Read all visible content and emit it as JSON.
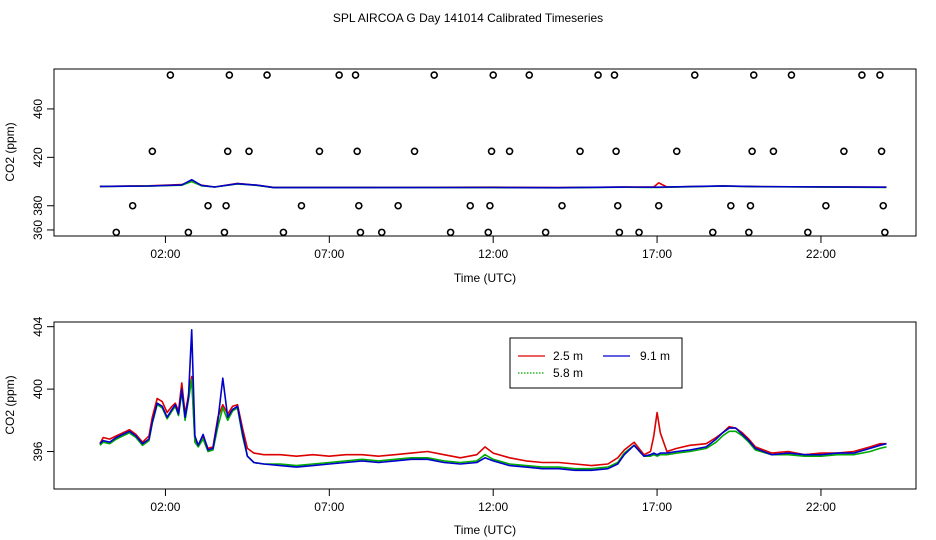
{
  "title": "SPL AIRCOA G  Day 141014  Calibrated Timeseries",
  "chart_data": [
    {
      "type": "scatter",
      "id": "top",
      "xlabel": "Time (UTC)",
      "ylabel": "CO2 (ppm)",
      "x_unit": "hours",
      "xlim": [
        -1.4,
        24.9
      ],
      "ylim": [
        355,
        493
      ],
      "xtick_values": [
        2,
        7,
        12,
        17,
        22
      ],
      "xtick_labels": [
        "02:00",
        "07:00",
        "12:00",
        "17:00",
        "22:00"
      ],
      "ytick_values": [
        360,
        380,
        420,
        460
      ],
      "ytick_labels": [
        "360",
        "380",
        "420",
        "460"
      ],
      "markers_note": "open circles at flagged points",
      "markers": [
        [
          0.5,
          358
        ],
        [
          1.0,
          380
        ],
        [
          1.6,
          425
        ],
        [
          2.15,
          488
        ],
        [
          2.7,
          358
        ],
        [
          3.3,
          380
        ],
        [
          3.8,
          358
        ],
        [
          3.85,
          380
        ],
        [
          3.9,
          425
        ],
        [
          3.95,
          488
        ],
        [
          4.55,
          425
        ],
        [
          5.1,
          488
        ],
        [
          5.6,
          358
        ],
        [
          6.15,
          380
        ],
        [
          6.7,
          425
        ],
        [
          7.3,
          488
        ],
        [
          7.8,
          488
        ],
        [
          7.85,
          425
        ],
        [
          7.9,
          380
        ],
        [
          7.95,
          358
        ],
        [
          8.6,
          358
        ],
        [
          9.1,
          380
        ],
        [
          9.6,
          425
        ],
        [
          10.2,
          488
        ],
        [
          10.7,
          358
        ],
        [
          11.3,
          380
        ],
        [
          11.85,
          358
        ],
        [
          11.9,
          380
        ],
        [
          11.95,
          425
        ],
        [
          12.0,
          488
        ],
        [
          12.5,
          425
        ],
        [
          13.1,
          488
        ],
        [
          13.6,
          358
        ],
        [
          14.1,
          380
        ],
        [
          14.65,
          425
        ],
        [
          15.2,
          488
        ],
        [
          15.7,
          488
        ],
        [
          15.75,
          425
        ],
        [
          15.8,
          380
        ],
        [
          15.85,
          358
        ],
        [
          16.45,
          358
        ],
        [
          17.05,
          380
        ],
        [
          17.6,
          425
        ],
        [
          18.15,
          488
        ],
        [
          18.7,
          358
        ],
        [
          19.25,
          380
        ],
        [
          19.8,
          358
        ],
        [
          19.85,
          380
        ],
        [
          19.9,
          425
        ],
        [
          19.95,
          488
        ],
        [
          20.55,
          425
        ],
        [
          21.1,
          488
        ],
        [
          21.6,
          358
        ],
        [
          22.15,
          380
        ],
        [
          22.7,
          425
        ],
        [
          23.25,
          488
        ],
        [
          23.8,
          488
        ],
        [
          23.85,
          425
        ],
        [
          23.9,
          380
        ],
        [
          23.95,
          358
        ]
      ],
      "series": [
        {
          "name": "2.5 m",
          "color": "#dd0000",
          "x": [
            0,
            1.5,
            2.5,
            2.8,
            3.1,
            3.5,
            4.2,
            4.8,
            5.3,
            8,
            12,
            14,
            16,
            16.9,
            17.05,
            17.3,
            19,
            20,
            24
          ],
          "y": [
            396,
            396.5,
            397.5,
            400,
            397,
            395.5,
            398.5,
            397,
            395.2,
            395.2,
            395.3,
            395,
            395.5,
            395.5,
            399,
            395.5,
            396.3,
            395.8,
            395.3
          ]
        },
        {
          "name": "5.8 m",
          "color": "#00aa00",
          "x": [
            0,
            1.5,
            2.5,
            2.8,
            3.1,
            3.5,
            4.2,
            4.8,
            5.3,
            8,
            12,
            14,
            16,
            17,
            19,
            20,
            24
          ],
          "y": [
            396,
            396.2,
            397,
            400,
            396.5,
            395.5,
            398,
            396.8,
            395,
            395,
            395,
            394.8,
            395.3,
            395.2,
            396.2,
            395.7,
            395.2
          ]
        },
        {
          "name": "9.1 m",
          "color": "#0000cc",
          "x": [
            0,
            1.5,
            2.5,
            2.8,
            3.1,
            3.5,
            4.2,
            4.8,
            5.3,
            8,
            12,
            14,
            16,
            17,
            19,
            20,
            24
          ],
          "y": [
            396,
            396.3,
            397.2,
            401.5,
            396.8,
            395.5,
            398.2,
            397,
            395,
            395,
            395.1,
            394.9,
            395.4,
            395.3,
            396.4,
            395.8,
            395.3
          ]
        }
      ]
    },
    {
      "type": "line",
      "id": "bottom",
      "xlabel": "Time (UTC)",
      "ylabel": "CO2 (ppm)",
      "x_unit": "hours",
      "xlim": [
        -1.4,
        24.9
      ],
      "ylim": [
        393.6,
        404.3
      ],
      "xtick_values": [
        2,
        7,
        12,
        17,
        22
      ],
      "xtick_labels": [
        "02:00",
        "07:00",
        "12:00",
        "17:00",
        "22:00"
      ],
      "ytick_values": [
        396,
        400,
        404
      ],
      "ytick_labels": [
        "396",
        "400",
        "404"
      ],
      "legend_position": "top-right-of-center",
      "legend": [
        {
          "label": "2.5 m",
          "color": "#dd0000",
          "style": "solid"
        },
        {
          "label": "5.8 m",
          "color": "#00aa00",
          "style": "dotted"
        },
        {
          "label": "9.1 m",
          "color": "#0000cc",
          "style": "solid"
        }
      ],
      "series": [
        {
          "name": "2.5 m",
          "color": "#dd0000",
          "x": [
            0,
            0.1,
            0.3,
            0.5,
            0.7,
            0.9,
            1.1,
            1.3,
            1.5,
            1.6,
            1.75,
            1.9,
            2.05,
            2.2,
            2.3,
            2.4,
            2.5,
            2.6,
            2.7,
            2.8,
            2.9,
            3.0,
            3.15,
            3.3,
            3.45,
            3.6,
            3.75,
            3.9,
            4.05,
            4.2,
            4.35,
            4.5,
            4.7,
            5.0,
            5.5,
            6.0,
            6.5,
            7.0,
            7.5,
            8.0,
            8.5,
            9.0,
            9.5,
            10.0,
            10.5,
            11.0,
            11.5,
            11.75,
            12.0,
            12.5,
            13.0,
            13.5,
            14.0,
            14.5,
            15.0,
            15.5,
            15.8,
            16.0,
            16.3,
            16.6,
            16.8,
            16.9,
            17.0,
            17.1,
            17.3,
            17.6,
            18.0,
            18.5,
            18.8,
            19.0,
            19.2,
            19.4,
            19.6,
            19.8,
            20.0,
            20.5,
            21.0,
            21.5,
            22.0,
            22.5,
            23.0,
            23.5,
            23.8,
            24.0
          ],
          "y": [
            396.5,
            396.9,
            396.8,
            397.0,
            397.2,
            397.4,
            397.1,
            396.6,
            397.0,
            398.2,
            399.4,
            399.2,
            398.5,
            398.9,
            399.1,
            398.6,
            400.4,
            398.4,
            399.6,
            400.8,
            396.8,
            396.4,
            397.0,
            396.2,
            396.3,
            398.2,
            399.0,
            398.4,
            398.9,
            399.0,
            397.5,
            396.2,
            395.9,
            395.8,
            395.8,
            395.7,
            395.8,
            395.7,
            395.8,
            395.8,
            395.7,
            395.8,
            395.9,
            396.0,
            395.8,
            395.6,
            395.8,
            396.3,
            395.9,
            395.6,
            395.4,
            395.3,
            395.3,
            395.2,
            395.1,
            395.2,
            395.6,
            396.1,
            396.6,
            395.8,
            396.0,
            397.0,
            398.5,
            397.2,
            396.0,
            396.2,
            396.4,
            396.5,
            396.9,
            397.2,
            397.6,
            397.5,
            397.2,
            396.8,
            396.3,
            395.9,
            396.0,
            395.8,
            395.9,
            395.9,
            396.0,
            396.3,
            396.5,
            396.5
          ]
        },
        {
          "name": "5.8 m",
          "color": "#00aa00",
          "x": [
            0,
            0.1,
            0.3,
            0.5,
            0.7,
            0.9,
            1.1,
            1.3,
            1.5,
            1.6,
            1.75,
            1.9,
            2.05,
            2.2,
            2.3,
            2.4,
            2.5,
            2.6,
            2.7,
            2.8,
            2.9,
            3.0,
            3.15,
            3.3,
            3.45,
            3.6,
            3.75,
            3.9,
            4.05,
            4.2,
            4.35,
            4.5,
            4.7,
            5.0,
            5.5,
            6.0,
            6.5,
            7.0,
            7.5,
            8.0,
            8.5,
            9.0,
            9.5,
            10.0,
            10.5,
            11.0,
            11.5,
            11.75,
            12.0,
            12.5,
            13.0,
            13.5,
            14.0,
            14.5,
            15.0,
            15.5,
            15.8,
            16.0,
            16.3,
            16.6,
            16.8,
            16.9,
            17.0,
            17.1,
            17.3,
            17.6,
            18.0,
            18.5,
            18.8,
            19.0,
            19.2,
            19.4,
            19.6,
            19.8,
            20.0,
            20.5,
            21.0,
            21.5,
            22.0,
            22.5,
            23.0,
            23.5,
            23.8,
            24.0
          ],
          "y": [
            396.4,
            396.6,
            396.5,
            396.8,
            397.0,
            397.2,
            396.9,
            396.4,
            396.7,
            397.8,
            399.0,
            398.8,
            398.1,
            398.6,
            398.9,
            398.3,
            399.8,
            398.0,
            399.3,
            400.6,
            396.6,
            396.3,
            396.8,
            396.0,
            396.1,
            397.6,
            398.8,
            398.0,
            398.6,
            398.8,
            397.0,
            395.7,
            395.3,
            395.2,
            395.2,
            395.1,
            395.2,
            395.3,
            395.4,
            395.5,
            395.4,
            395.5,
            395.6,
            395.6,
            395.4,
            395.3,
            395.4,
            395.8,
            395.5,
            395.2,
            395.1,
            395.0,
            395.0,
            394.9,
            394.9,
            395.0,
            395.3,
            395.9,
            396.4,
            395.7,
            395.7,
            395.8,
            395.7,
            395.8,
            395.8,
            395.9,
            396.0,
            396.2,
            396.6,
            397.0,
            397.3,
            397.3,
            397.0,
            396.6,
            396.1,
            395.8,
            395.8,
            395.7,
            395.7,
            395.8,
            395.8,
            396.0,
            396.2,
            396.3
          ]
        },
        {
          "name": "9.1 m",
          "color": "#0000cc",
          "x": [
            0,
            0.1,
            0.3,
            0.5,
            0.7,
            0.9,
            1.1,
            1.3,
            1.5,
            1.6,
            1.75,
            1.9,
            2.05,
            2.2,
            2.3,
            2.4,
            2.5,
            2.6,
            2.7,
            2.8,
            2.9,
            3.0,
            3.15,
            3.3,
            3.45,
            3.6,
            3.75,
            3.9,
            4.05,
            4.2,
            4.35,
            4.5,
            4.7,
            5.0,
            5.5,
            6.0,
            6.5,
            7.0,
            7.5,
            8.0,
            8.5,
            9.0,
            9.5,
            10.0,
            10.5,
            11.0,
            11.5,
            11.75,
            12.0,
            12.5,
            13.0,
            13.5,
            14.0,
            14.5,
            15.0,
            15.5,
            15.8,
            16.0,
            16.3,
            16.6,
            16.8,
            16.9,
            17.0,
            17.1,
            17.3,
            17.6,
            18.0,
            18.5,
            18.8,
            19.0,
            19.2,
            19.4,
            19.6,
            19.8,
            20.0,
            20.5,
            21.0,
            21.5,
            22.0,
            22.5,
            23.0,
            23.5,
            23.8,
            24.0
          ],
          "y": [
            396.5,
            396.7,
            396.6,
            396.9,
            397.1,
            397.3,
            397.0,
            396.5,
            396.8,
            397.9,
            399.1,
            398.9,
            398.2,
            398.7,
            399.0,
            398.4,
            400.0,
            398.2,
            399.4,
            403.8,
            397.0,
            396.4,
            397.1,
            396.1,
            396.2,
            398.0,
            400.7,
            398.2,
            398.7,
            398.9,
            397.2,
            395.7,
            395.3,
            395.2,
            395.1,
            395.0,
            395.1,
            395.2,
            395.3,
            395.4,
            395.3,
            395.4,
            395.5,
            395.5,
            395.3,
            395.2,
            395.3,
            395.6,
            395.4,
            395.1,
            395.0,
            394.9,
            394.9,
            394.8,
            394.8,
            394.9,
            395.2,
            395.8,
            396.4,
            395.7,
            395.8,
            395.9,
            395.8,
            395.9,
            395.9,
            396.0,
            396.1,
            396.3,
            396.8,
            397.2,
            397.5,
            397.5,
            397.1,
            396.7,
            396.2,
            395.8,
            395.9,
            395.8,
            395.8,
            395.9,
            395.9,
            396.2,
            396.4,
            396.5
          ]
        }
      ]
    }
  ]
}
